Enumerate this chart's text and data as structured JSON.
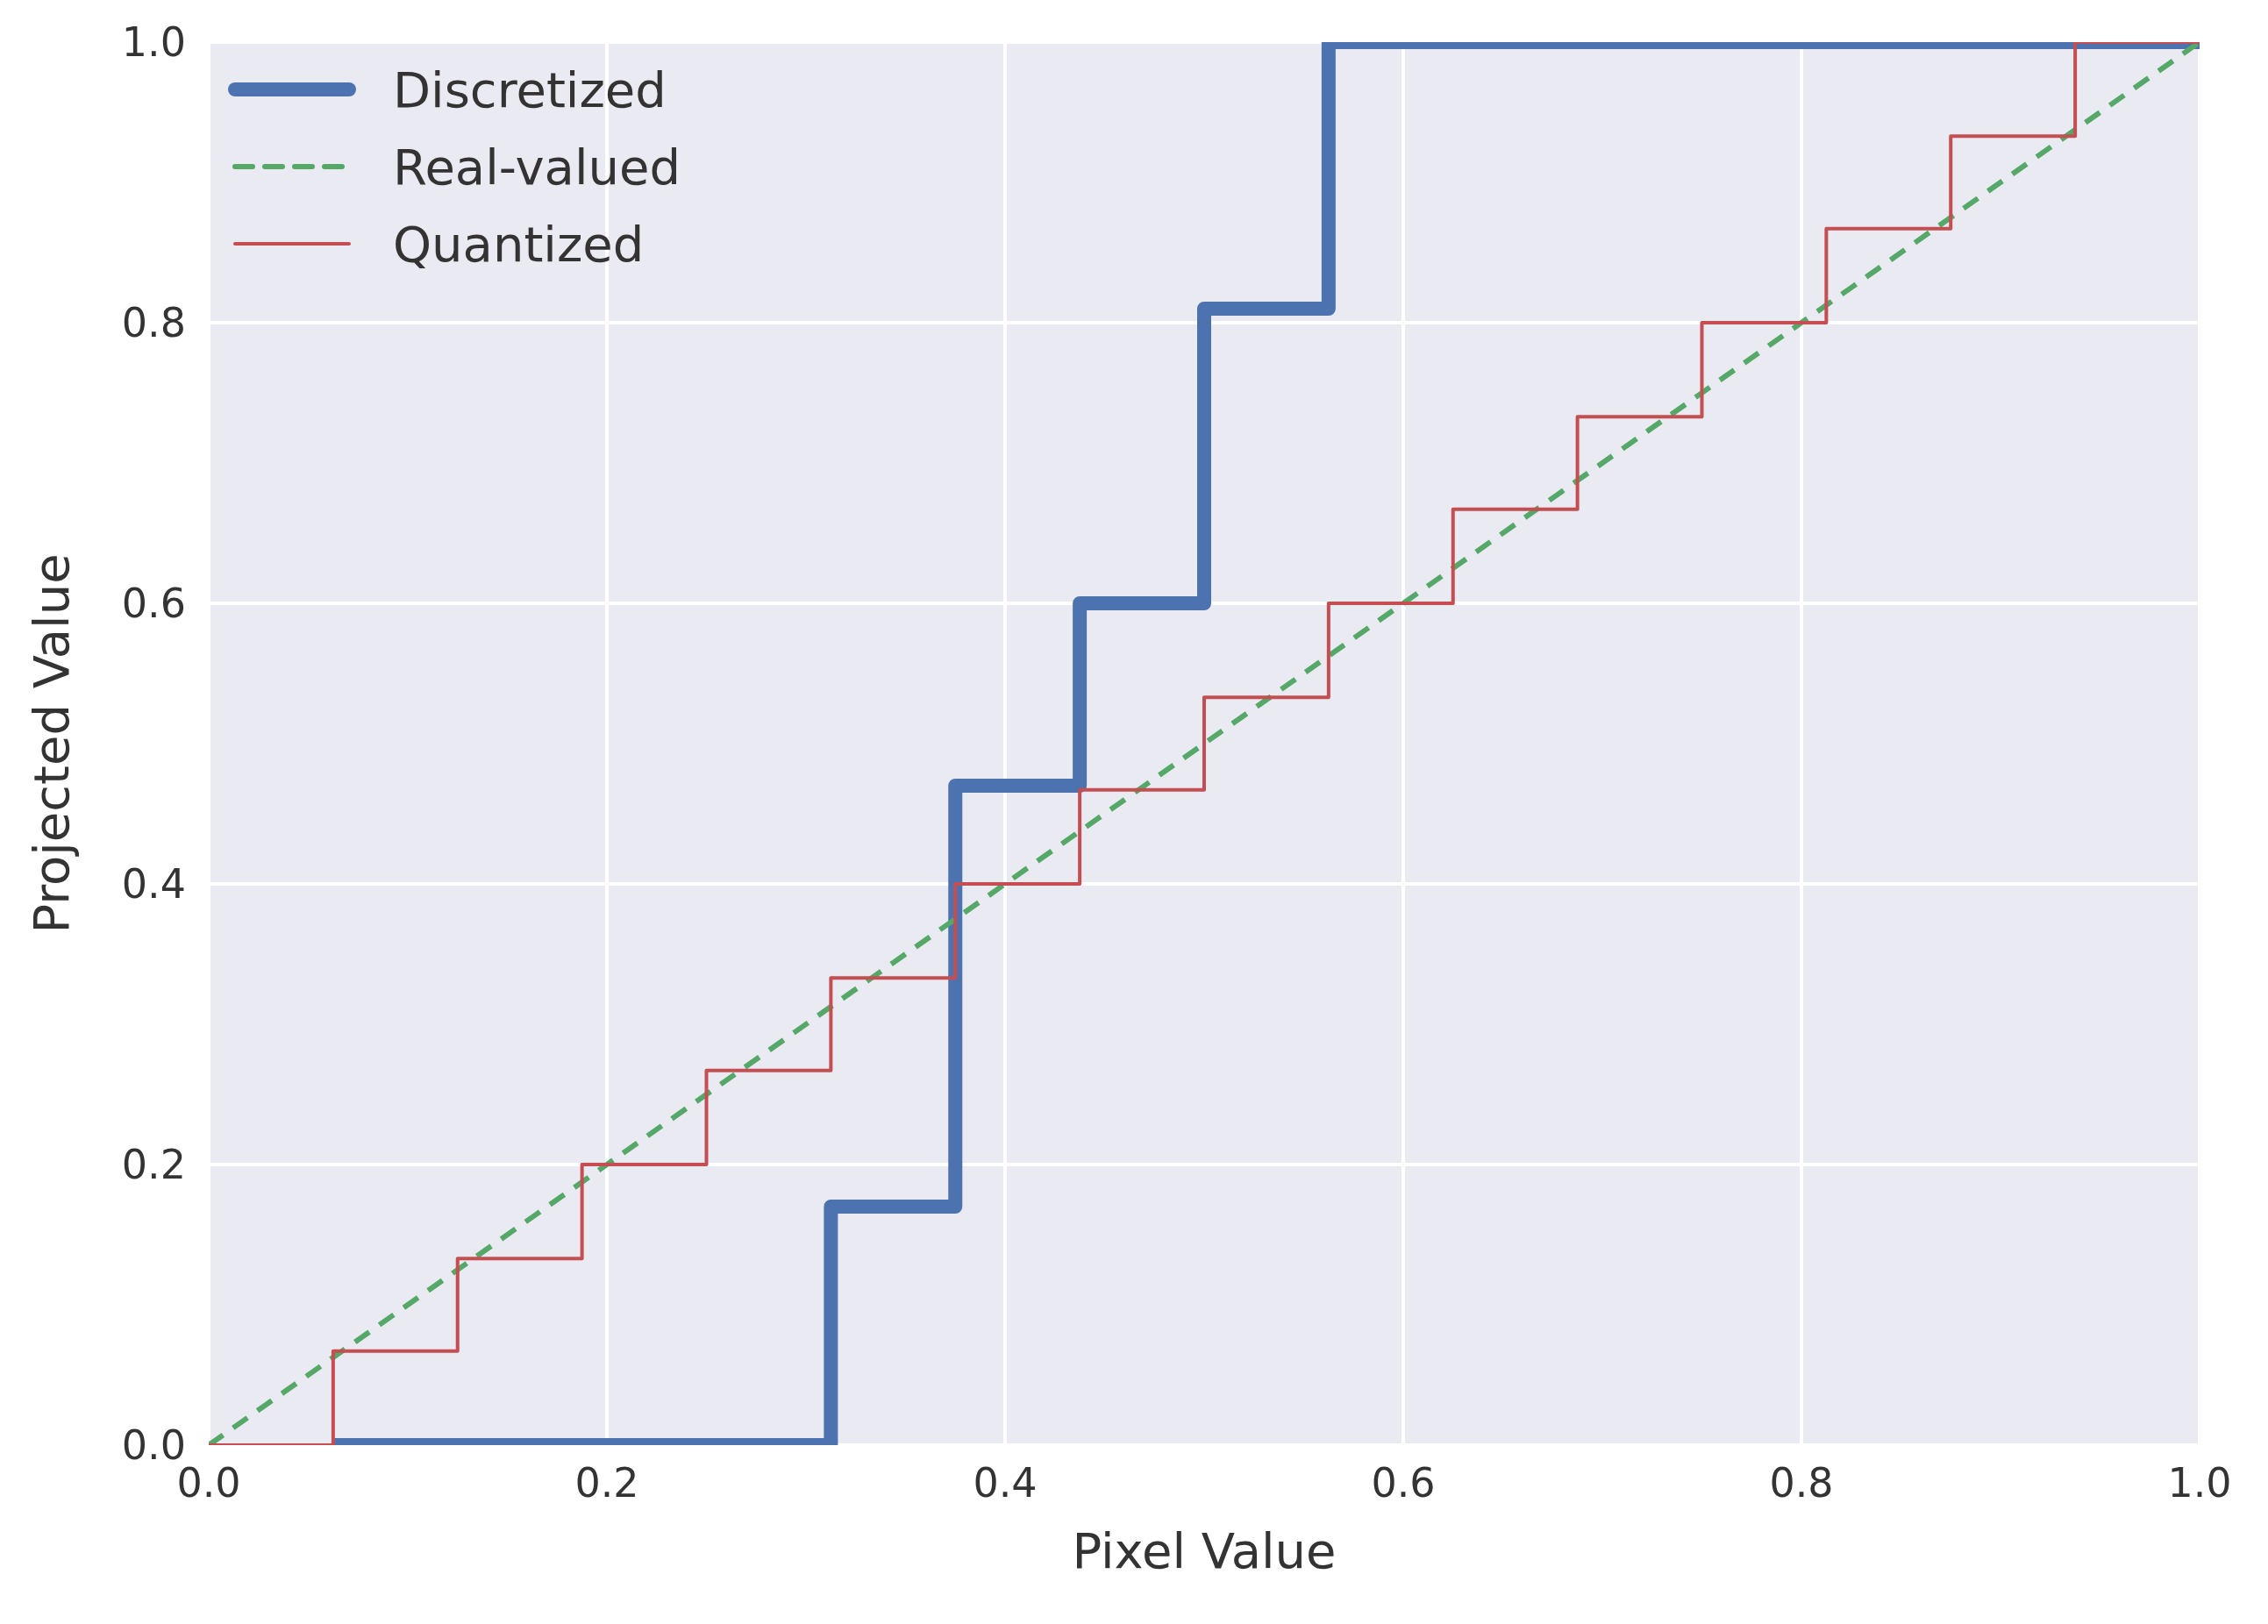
{
  "chart_data": {
    "type": "line",
    "xlabel": "Pixel Value",
    "ylabel": "Projected Value",
    "xlim": [
      0,
      1
    ],
    "ylim": [
      0,
      1
    ],
    "xticks": [
      {
        "value": 0,
        "label": "0.0"
      },
      {
        "value": 0.2,
        "label": "0.2"
      },
      {
        "value": 0.4,
        "label": "0.4"
      },
      {
        "value": 0.6,
        "label": "0.6"
      },
      {
        "value": 0.8,
        "label": "0.8"
      },
      {
        "value": 1,
        "label": "1.0"
      }
    ],
    "yticks": [
      {
        "value": 0,
        "label": "0.0"
      },
      {
        "value": 0.2,
        "label": "0.2"
      },
      {
        "value": 0.4,
        "label": "0.4"
      },
      {
        "value": 0.6,
        "label": "0.6"
      },
      {
        "value": 0.8,
        "label": "0.8"
      },
      {
        "value": 1,
        "label": "1.0"
      }
    ],
    "grid": true,
    "legend": "top left",
    "series": [
      {
        "name": "Discretized",
        "type": "step",
        "color": "#4c72b0",
        "line_style": "solid",
        "x": [
          0.0625,
          0.3125,
          0.375,
          0.4375,
          0.5,
          0.5625,
          1.0
        ],
        "values": [
          0,
          0.17,
          0.47,
          0.6,
          0.81,
          1.0,
          1.0
        ]
      },
      {
        "name": "Real-valued",
        "color": "#55a868",
        "line_style": "dashed",
        "x": [
          0,
          1
        ],
        "values": [
          0,
          1
        ]
      },
      {
        "name": "Quantized",
        "type": "step",
        "color": "#c44e52",
        "line_style": "solid",
        "x": [
          0,
          0.0625,
          0.125,
          0.1875,
          0.25,
          0.3125,
          0.375,
          0.4375,
          0.5,
          0.5625,
          0.625,
          0.6875,
          0.75,
          0.8125,
          0.875,
          0.9375,
          1.0
        ],
        "values": [
          0,
          0.067,
          0.133,
          0.2,
          0.267,
          0.333,
          0.4,
          0.467,
          0.533,
          0.6,
          0.667,
          0.733,
          0.8,
          0.867,
          0.933,
          1.0,
          1.0
        ]
      }
    ]
  }
}
